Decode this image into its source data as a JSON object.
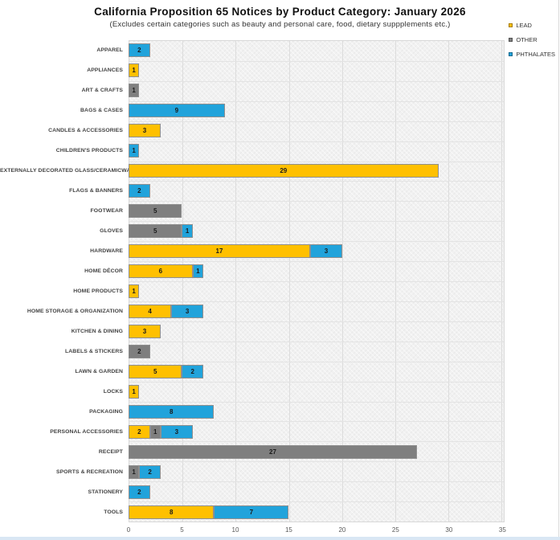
{
  "title": "California Proposition 65 Notices by Product Category: January 2026",
  "subtitle": "(Excludes certain categories such as beauty and personal care, food, dietary suppplements etc.)",
  "colors": {
    "lead": "#FFC000",
    "other": "#7F7F7F",
    "phthalates": "#21A3DB",
    "plot_background": "#f1f1f1",
    "gridline": "#dcdcdc"
  },
  "chart_data": {
    "type": "bar",
    "orientation": "horizontal",
    "stacked": true,
    "title": "California Proposition 65 Notices by Product Category: January 2026",
    "subtitle": "(Excludes certain categories such as beauty and personal care, food, dietary suppplements etc.)",
    "xlabel": "",
    "ylabel": "",
    "xlim": [
      0,
      35
    ],
    "x_ticks": [
      0,
      5,
      10,
      15,
      20,
      25,
      30,
      35
    ],
    "grid": true,
    "legend_position": "top-right",
    "categories": [
      "APPAREL",
      "APPLIANCES",
      "ART & CRAFTS",
      "BAGS & CASES",
      "CANDLES & ACCESSORIES",
      "CHILDREN'S PRODUCTS",
      "EXTERNALLY DECORATED GLASS/CERAMICWARE",
      "FLAGS & BANNERS",
      "FOOTWEAR",
      "GLOVES",
      "HARDWARE",
      "HOME DÉCOR",
      "HOME PRODUCTS",
      "HOME STORAGE & ORGANIZATION",
      "KITCHEN & DINING",
      "LABELS & STICKERS",
      "LAWN & GARDEN",
      "LOCKS",
      "PACKAGING",
      "PERSONAL ACCESSORIES",
      "RECEIPT",
      "SPORTS & RECREATION",
      "STATIONERY",
      "TOOLS"
    ],
    "series": [
      {
        "name": "LEAD",
        "color": "#FFC000",
        "values": [
          0,
          1,
          0,
          0,
          3,
          0,
          29,
          0,
          0,
          0,
          17,
          6,
          1,
          4,
          3,
          0,
          5,
          1,
          0,
          2,
          0,
          0,
          0,
          8
        ]
      },
      {
        "name": "OTHER",
        "color": "#7F7F7F",
        "values": [
          0,
          0,
          1,
          0,
          0,
          0,
          0,
          0,
          5,
          5,
          0,
          0,
          0,
          0,
          0,
          2,
          0,
          0,
          0,
          1,
          27,
          1,
          0,
          0
        ]
      },
      {
        "name": "PHTHALATES",
        "color": "#21A3DB",
        "values": [
          2,
          0,
          0,
          9,
          0,
          1,
          0,
          2,
          0,
          1,
          3,
          1,
          0,
          3,
          0,
          0,
          2,
          0,
          8,
          3,
          0,
          2,
          2,
          7
        ]
      }
    ]
  }
}
